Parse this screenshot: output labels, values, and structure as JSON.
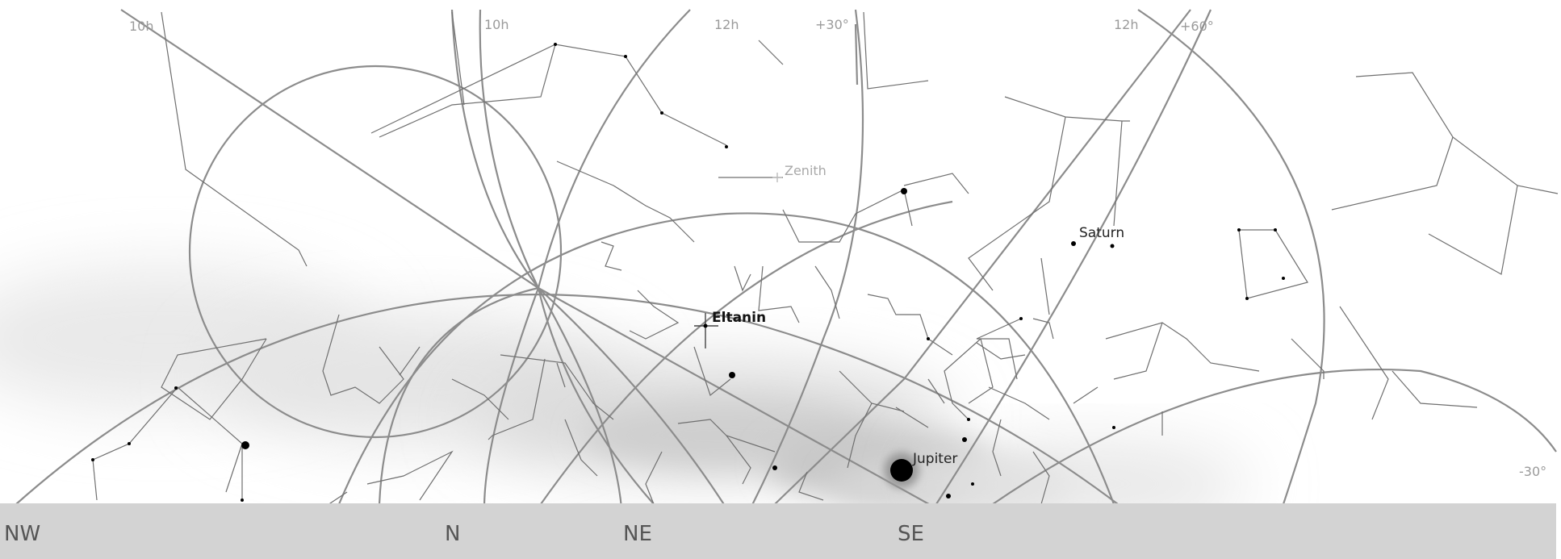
{
  "grid_labels": {
    "ra_left": "10h",
    "ra_top_1": "10h",
    "ra_top_2": "12h",
    "dec_top": "+30°",
    "ra_top_3": "12h",
    "dec_top_2": "+60°",
    "dec_right": "-30°"
  },
  "objects": {
    "zenith": "Zenith",
    "saturn": "Saturn",
    "eltanin": "Eltanin",
    "jupiter": "Jupiter"
  },
  "horizon": {
    "directions": [
      "NW",
      "N",
      "NE",
      "SE"
    ]
  },
  "colors": {
    "grid_line": "#8c8c8c",
    "constellation_line": "#6f6f6f",
    "horizon_bar": "#d3d3d3",
    "direction_text": "#555555"
  }
}
